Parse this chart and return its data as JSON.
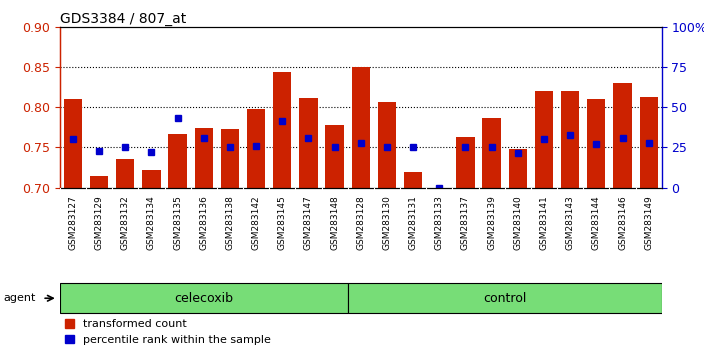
{
  "title": "GDS3384 / 807_at",
  "samples": [
    "GSM283127",
    "GSM283129",
    "GSM283132",
    "GSM283134",
    "GSM283135",
    "GSM283136",
    "GSM283138",
    "GSM283142",
    "GSM283145",
    "GSM283147",
    "GSM283148",
    "GSM283128",
    "GSM283130",
    "GSM283131",
    "GSM283133",
    "GSM283137",
    "GSM283139",
    "GSM283140",
    "GSM283141",
    "GSM283143",
    "GSM283144",
    "GSM283146",
    "GSM283149"
  ],
  "bar_heights": [
    0.81,
    0.714,
    0.735,
    0.722,
    0.766,
    0.774,
    0.773,
    0.798,
    0.843,
    0.811,
    0.778,
    0.85,
    0.806,
    0.72,
    0.7,
    0.763,
    0.786,
    0.748,
    0.82,
    0.82,
    0.81,
    0.83,
    0.812
  ],
  "blue_markers": [
    0.76,
    0.745,
    0.75,
    0.744,
    0.786,
    0.762,
    0.75,
    0.752,
    0.783,
    0.762,
    0.751,
    0.755,
    0.751,
    0.75,
    0.7,
    0.75,
    0.75,
    0.743,
    0.76,
    0.765,
    0.754,
    0.761,
    0.756
  ],
  "groups": [
    {
      "label": "celecoxib",
      "start": 0,
      "end": 11,
      "color": "#77DD77"
    },
    {
      "label": "control",
      "start": 11,
      "end": 23,
      "color": "#77DD77"
    }
  ],
  "ylim": [
    0.7,
    0.9
  ],
  "y_ticks": [
    0.7,
    0.75,
    0.8,
    0.85,
    0.9
  ],
  "right_y_ticks": [
    0,
    25,
    50,
    75,
    100
  ],
  "right_y_labels": [
    "0",
    "25",
    "50",
    "75",
    "100%"
  ],
  "bar_color": "#CC2200",
  "blue_color": "#0000CC",
  "bg_xtick": "#C8C8C8",
  "agent_label": "agent",
  "legend_items": [
    "transformed count",
    "percentile rank within the sample"
  ]
}
